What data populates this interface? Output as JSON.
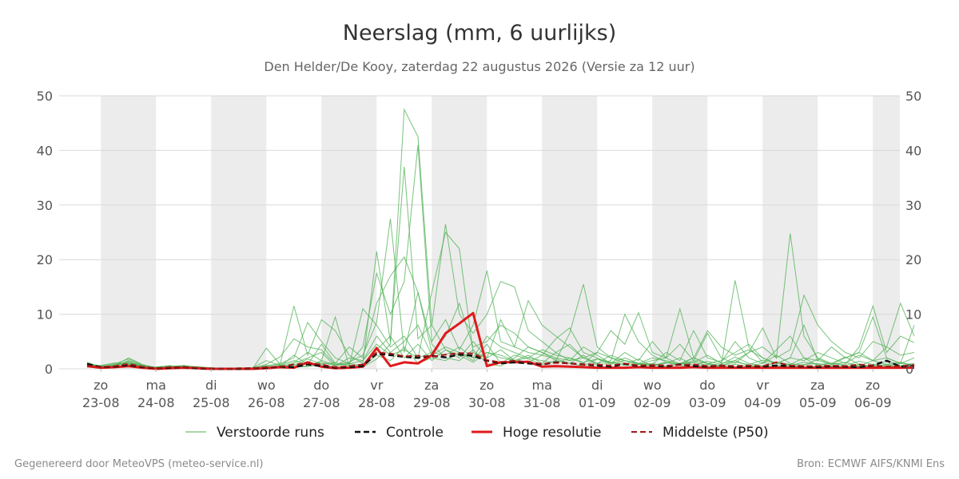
{
  "chart_data": {
    "type": "line",
    "title": "Neerslag (mm, 6 uurlijks)",
    "subtitle": "Den Helder/De Kooy, zaterdag 22 augustus 2026 (Versie za 12 uur)",
    "xlabel": "",
    "ylabel": "",
    "ylim": [
      0,
      50
    ],
    "yticks": [
      0,
      10,
      20,
      30,
      40,
      50
    ],
    "grid": true,
    "legend_position": "bottom",
    "x_unit": "6-hour steps from 22-08 18:00",
    "x_range": [
      0,
      60
    ],
    "day_ticks": [
      {
        "x": 1,
        "day": "zo",
        "date": "23-08"
      },
      {
        "x": 5,
        "day": "ma",
        "date": "24-08"
      },
      {
        "x": 9,
        "day": "di",
        "date": "25-08"
      },
      {
        "x": 13,
        "day": "wo",
        "date": "26-08"
      },
      {
        "x": 17,
        "day": "do",
        "date": "27-08"
      },
      {
        "x": 21,
        "day": "vr",
        "date": "28-08"
      },
      {
        "x": 25,
        "day": "za",
        "date": "29-08"
      },
      {
        "x": 29,
        "day": "zo",
        "date": "30-08"
      },
      {
        "x": 33,
        "day": "ma",
        "date": "31-08"
      },
      {
        "x": 37,
        "day": "di",
        "date": "01-09"
      },
      {
        "x": 41,
        "day": "wo",
        "date": "02-09"
      },
      {
        "x": 45,
        "day": "do",
        "date": "03-09"
      },
      {
        "x": 49,
        "day": "vr",
        "date": "04-09"
      },
      {
        "x": 53,
        "day": "za",
        "date": "05-09"
      },
      {
        "x": 57,
        "day": "zo",
        "date": "06-09"
      }
    ],
    "shaded_days": [
      [
        1,
        5
      ],
      [
        9,
        13
      ],
      [
        17,
        21
      ],
      [
        25,
        29
      ],
      [
        33,
        37
      ],
      [
        41,
        45
      ],
      [
        49,
        53
      ],
      [
        57,
        60
      ]
    ],
    "series": [
      {
        "name": "Verstoorde runs",
        "style": "thin-green",
        "members": [
          [
            1.2,
            0.4,
            0.6,
            2.0,
            0.8,
            0.2,
            0.4,
            0.6,
            0.3,
            0.1,
            0,
            0.1,
            0.2,
            1.5,
            0.6,
            0.3,
            0.4,
            0.8,
            0.3,
            0.4,
            0.3,
            1.8,
            4.5,
            47.5,
            42.5,
            8.0,
            3.5,
            2.5,
            1.2,
            3.0,
            2.0,
            1.5,
            1.2,
            2.5,
            1.8,
            1.0,
            0.5,
            1.8,
            1.2,
            0.6,
            0.8,
            1.0,
            0.5,
            0.8,
            1.2,
            0.6,
            0.4,
            0.8,
            0.5,
            0.6,
            0.4,
            0.8,
            0.3,
            0.5,
            0.6,
            0.4,
            0.8,
            0.3,
            0.5,
            0.4,
            0.6
          ],
          [
            0.8,
            0.3,
            0.5,
            1.5,
            0.6,
            0.1,
            0.3,
            0.4,
            0.2,
            0,
            0.1,
            0,
            0.1,
            0.8,
            2.2,
            5.5,
            4.0,
            3.5,
            0.8,
            1.2,
            2.5,
            8.5,
            27.5,
            3.0,
            14.0,
            4.5,
            2.0,
            1.5,
            3.5,
            1.0,
            0.5,
            2.0,
            4.0,
            3.0,
            1.5,
            6.5,
            15.5,
            4.0,
            2.0,
            1.0,
            0.8,
            0.5,
            1.2,
            0.6,
            0.4,
            0.8,
            0.6,
            16.2,
            4.0,
            1.2,
            0.6,
            0.4,
            0.8,
            1.0,
            0.5,
            0.3,
            0.6,
            0.4,
            0.8,
            0.3,
            0.5
          ],
          [
            0.5,
            0.6,
            1.1,
            0.9,
            0.5,
            0.3,
            0.6,
            0.2,
            0.1,
            0.2,
            0,
            0.1,
            0,
            3.8,
            0.8,
            11.5,
            2.5,
            9.0,
            7.0,
            2.5,
            1.0,
            21.5,
            5.0,
            37.0,
            5.5,
            8.0,
            26.5,
            10.0,
            6.5,
            10.0,
            16.0,
            15.0,
            7.0,
            5.0,
            3.0,
            4.5,
            2.0,
            1.0,
            1.5,
            10.0,
            5.0,
            2.5,
            1.2,
            0.8,
            2.0,
            1.0,
            0.6,
            1.5,
            3.0,
            7.5,
            2.0,
            24.8,
            6.0,
            2.0,
            1.0,
            0.8,
            4.0,
            11.5,
            3.0,
            6.0,
            4.8
          ],
          [
            0.3,
            0.2,
            0.8,
            1.2,
            0.4,
            0.2,
            0.5,
            0.3,
            0.2,
            0.1,
            0.1,
            0,
            0.2,
            0.5,
            1.0,
            2.0,
            8.5,
            5.0,
            2.0,
            1.0,
            4.0,
            17.5,
            10.0,
            16.0,
            41.0,
            5.0,
            9.0,
            3.5,
            8.0,
            18.0,
            5.0,
            4.0,
            12.5,
            8.0,
            6.0,
            4.0,
            2.0,
            3.0,
            7.0,
            4.5,
            10.3,
            3.0,
            2.0,
            4.5,
            1.5,
            6.5,
            2.0,
            1.0,
            3.0,
            4.0,
            2.0,
            3.5,
            13.5,
            8.0,
            5.0,
            3.0,
            2.0,
            5.0,
            4.0,
            12.0,
            6.0
          ],
          [
            0.9,
            0.5,
            0.3,
            0.8,
            0.3,
            0.1,
            0.2,
            0.5,
            0.4,
            0.2,
            0,
            0.1,
            0,
            0.3,
            0.6,
            1.2,
            3.0,
            1.5,
            9.5,
            0.5,
            11.0,
            8.0,
            4.0,
            6.0,
            2.0,
            14.0,
            25.0,
            22.0,
            3.0,
            2.0,
            9.0,
            4.0,
            3.0,
            2.5,
            5.5,
            7.5,
            3.0,
            2.0,
            1.0,
            3.0,
            1.5,
            5.0,
            2.0,
            11.0,
            2.0,
            7.0,
            4.0,
            2.5,
            3.5,
            2.0,
            1.0,
            2.0,
            8.0,
            1.5,
            4.0,
            2.0,
            3.0,
            9.5,
            2.0,
            1.0,
            8.0
          ],
          [
            0.6,
            0.4,
            0.7,
            1.0,
            0.2,
            0.3,
            0.1,
            0.4,
            0.1,
            0,
            0,
            0.2,
            0.1,
            0.4,
            0.5,
            2.5,
            0.8,
            4.5,
            1.0,
            4.0,
            2.0,
            12.0,
            17.0,
            20.5,
            14.0,
            3.0,
            6.0,
            12.0,
            4.0,
            5.0,
            8.0,
            6.5,
            4.0,
            3.0,
            2.0,
            1.5,
            4.0,
            2.5,
            1.0,
            2.0,
            1.0,
            0.8,
            3.0,
            1.5,
            7.0,
            2.0,
            1.2,
            5.0,
            2.0,
            1.0,
            3.5,
            6.0,
            2.0,
            1.5,
            0.8,
            2.0,
            3.0,
            1.5,
            4.0,
            2.5,
            3.0
          ],
          [
            1.0,
            0.3,
            0.4,
            1.4,
            0.5,
            0.2,
            0.3,
            0.2,
            0.1,
            0.1,
            0,
            0,
            0.1,
            0.2,
            0.3,
            1.0,
            2.0,
            3.0,
            0.5,
            2.0,
            1.5,
            6.0,
            3.0,
            5.0,
            8.0,
            2.5,
            4.0,
            3.0,
            2.0,
            6.0,
            4.0,
            3.0,
            2.0,
            3.5,
            2.5,
            2.0,
            1.0,
            3.0,
            2.0,
            1.5,
            1.0,
            2.0,
            1.5,
            1.0,
            2.0,
            1.0,
            1.5,
            3.0,
            4.5,
            2.0,
            1.0,
            2.0,
            1.5,
            3.0,
            2.0,
            1.0,
            2.5,
            1.5,
            2.0,
            1.0,
            2.0
          ],
          [
            0.7,
            0.6,
            0.9,
            1.8,
            0.7,
            0.1,
            0.4,
            0.6,
            0.2,
            0.1,
            0.1,
            0.1,
            0.2,
            0.6,
            0.8,
            1.5,
            0.8,
            1.2,
            0.6,
            0.9,
            1.5,
            4.5,
            2.5,
            3.5,
            2.0,
            3.0,
            2.5,
            4.0,
            2.0,
            3.0,
            2.5,
            1.5,
            2.0,
            1.5,
            1.0,
            2.0,
            1.2,
            1.8,
            0.8,
            1.5,
            1.0,
            0.6,
            1.2,
            0.8,
            1.5,
            1.0,
            0.5,
            1.2,
            0.8,
            1.6,
            1.0,
            0.6,
            1.2,
            0.8,
            1.0,
            0.6,
            1.4,
            0.8,
            0.6,
            1.0,
            0.8
          ],
          [
            0.4,
            0.5,
            0.6,
            1.1,
            0.6,
            0.2,
            0.2,
            0.3,
            0.3,
            0.1,
            0,
            0,
            0,
            0.1,
            0.5,
            0.6,
            1.8,
            0.9,
            1.1,
            0.6,
            0.8,
            3.5,
            6.0,
            2.0,
            4.5,
            1.5,
            3.5,
            2.0,
            5.0,
            2.0,
            3.5,
            1.5,
            2.5,
            1.0,
            3.0,
            1.5,
            2.0,
            1.0,
            2.5,
            1.5,
            0.8,
            1.5,
            2.0,
            0.8,
            1.2,
            2.5,
            1.0,
            1.5,
            0.6,
            1.0,
            2.5,
            1.0,
            0.6,
            1.8,
            0.8,
            1.2,
            0.5,
            1.5,
            0.8,
            1.2,
            0.6
          ],
          [
            1.1,
            0.2,
            0.5,
            0.7,
            0.4,
            0.3,
            0.5,
            0.4,
            0.2,
            0.1,
            0.1,
            0.1,
            0.1,
            0.3,
            0.2,
            0.8,
            0.4,
            1.5,
            0.7,
            1.0,
            0.5,
            2.5,
            1.5,
            4.0,
            1.0,
            2.0,
            1.5,
            3.0,
            1.5,
            4.5,
            1.0,
            2.5,
            1.8,
            0.8,
            1.5,
            1.0,
            2.5,
            0.6,
            1.2,
            0.8,
            1.8,
            0.5,
            1.0,
            2.0,
            0.6,
            1.4,
            0.8,
            2.2,
            1.0,
            0.5,
            1.2,
            0.8,
            2.0,
            0.6,
            1.0,
            2.2,
            0.8,
            0.5,
            1.5,
            0.6,
            1.0
          ]
        ]
      },
      {
        "name": "Controle",
        "style": "dashed-black",
        "values": [
          0.9,
          0.3,
          0.4,
          0.7,
          0.3,
          0.1,
          0.2,
          0.3,
          0.1,
          0,
          0,
          0,
          0.1,
          0.2,
          0.4,
          0.3,
          0.8,
          0.5,
          0.2,
          0.3,
          0.5,
          2.8,
          2.5,
          2.2,
          2.0,
          2.4,
          2.1,
          2.6,
          2.4,
          1.5,
          1.0,
          1.2,
          1.0,
          0.8,
          1.2,
          1.0,
          0.8,
          0.6,
          0.4,
          0.9,
          0.5,
          0.6,
          0.4,
          0.8,
          0.5,
          0.4,
          0.6,
          0.3,
          0.5,
          0.4,
          0.6,
          0.5,
          0.4,
          0.3,
          0.5,
          0.4,
          0.3,
          0.6,
          1.5,
          0.4,
          0.6
        ]
      },
      {
        "name": "Hoge resolutie",
        "style": "solid-red",
        "values": [
          0.5,
          0.2,
          0.3,
          0.5,
          0.2,
          0,
          0.1,
          0.2,
          0.1,
          0,
          0,
          0,
          0,
          0.1,
          0.3,
          0.2,
          1.2,
          0.4,
          0.1,
          0.2,
          0.4,
          3.8,
          0.5,
          1.2,
          1.0,
          2.5,
          6.5,
          8.3,
          10.2,
          0.5,
          1.2,
          1.2,
          1.3,
          0.4,
          0.5,
          0.4,
          0.3,
          0.2,
          0.2,
          0.2,
          0.3,
          0.2,
          0.2,
          0.2,
          0.3,
          0.2,
          0.2,
          0.2,
          0.2,
          0.2,
          0.2,
          0.2,
          0.2,
          0.2,
          0.2,
          0.2,
          0.2,
          0.2,
          0.2,
          0.2,
          0.2
        ]
      },
      {
        "name": "Middelste (P50)",
        "style": "dashed-darkred",
        "values": [
          0.6,
          0.3,
          0.5,
          0.9,
          0.4,
          0.1,
          0.3,
          0.3,
          0.2,
          0,
          0,
          0.1,
          0.1,
          0.3,
          0.4,
          0.8,
          1.0,
          0.8,
          0.3,
          0.5,
          0.8,
          3.0,
          2.8,
          2.3,
          2.4,
          2.2,
          2.6,
          2.9,
          2.8,
          1.6,
          1.2,
          1.5,
          1.2,
          0.9,
          1.1,
          1.0,
          0.8,
          0.8,
          0.6,
          1.0,
          0.6,
          0.7,
          0.6,
          0.7,
          0.8,
          0.5,
          0.6,
          0.5,
          0.6,
          0.5,
          1.2,
          0.6,
          0.5,
          0.5,
          0.6,
          0.5,
          0.8,
          0.6,
          0.4,
          0.5,
          0.7
        ]
      }
    ]
  },
  "legend": {
    "perturbed": "Verstoorde runs",
    "control": "Controle",
    "highres": "Hoge resolutie",
    "median": "Middelste (P50)"
  },
  "footer": {
    "left": "Gegenereerd door MeteoVPS (meteo-service.nl)",
    "right": "Bron: ECMWF AIFS/KNMI Ens"
  },
  "colors": {
    "perturbed": "#4caf50",
    "control": "#111111",
    "highres": "#e0191b",
    "median": "#a31616",
    "shade": "#ececec",
    "grid": "#d9d9d9"
  }
}
